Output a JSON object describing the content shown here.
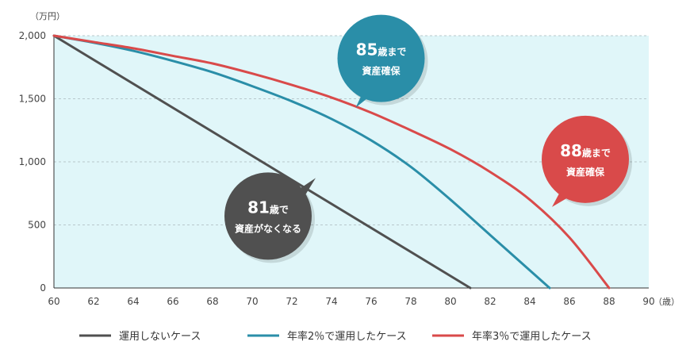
{
  "chart_data": {
    "type": "line",
    "y_unit_label": "（万円）",
    "x_unit_label": "（歳）",
    "xlim": [
      60,
      90
    ],
    "ylim": [
      0,
      2000
    ],
    "x_ticks": [
      "60",
      "62",
      "64",
      "66",
      "68",
      "70",
      "72",
      "74",
      "76",
      "78",
      "80",
      "82",
      "84",
      "86",
      "88",
      "90"
    ],
    "y_ticks": [
      "2,000",
      "1,500",
      "1,000",
      "500",
      "0"
    ],
    "y_tick_values": [
      2000,
      1500,
      1000,
      500,
      0
    ],
    "grid": "horizontal-dashed",
    "legend_position": "bottom",
    "series": [
      {
        "name": "運用しないケース",
        "color": "#505050",
        "x": [
          60,
          81
        ],
        "y": [
          2000,
          0
        ]
      },
      {
        "name": "年率2％で運用したケース",
        "color": "#2a8ea8",
        "x": [
          60,
          62,
          64,
          66,
          68,
          70,
          72,
          74,
          76,
          78,
          80,
          82,
          84,
          85
        ],
        "y": [
          2000,
          1945,
          1880,
          1800,
          1710,
          1600,
          1480,
          1340,
          1170,
          960,
          700,
          420,
          140,
          0
        ]
      },
      {
        "name": "年率3％で運用したケース",
        "color": "#d94a4a",
        "x": [
          60,
          62,
          64,
          66,
          68,
          70,
          72,
          74,
          76,
          78,
          80,
          82,
          84,
          86,
          88
        ],
        "y": [
          2000,
          1950,
          1900,
          1840,
          1780,
          1700,
          1610,
          1510,
          1390,
          1250,
          1100,
          920,
          700,
          400,
          0
        ]
      }
    ],
    "annotations": [
      {
        "line1": "85",
        "line1_suffix": "歳まで",
        "line2": "資産確保",
        "color": "#2a8ea8",
        "x": 76.5,
        "y": 1820
      },
      {
        "line1": "88",
        "line1_suffix": "歳まで",
        "line2": "資産確保",
        "color": "#d94a4a",
        "x": 86.8,
        "y": 1020
      },
      {
        "line1": "81",
        "line1_suffix": "歳で",
        "line2": "資産がなくなる",
        "color": "#505050",
        "x": 70.8,
        "y": 570
      }
    ]
  }
}
